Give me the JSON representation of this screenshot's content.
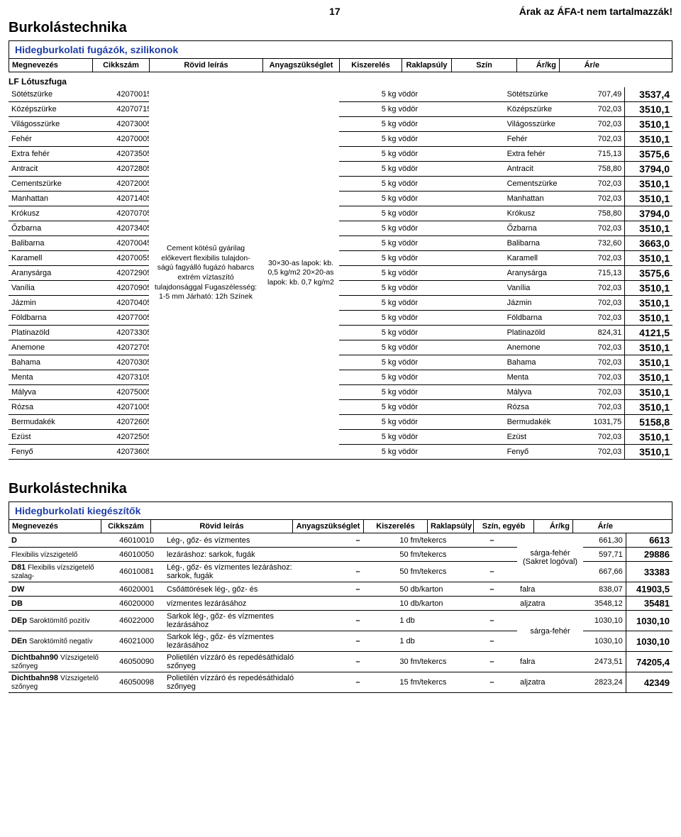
{
  "page_number": "17",
  "vat_note": "Árak az ÁFA-t nem tartalmazzák!",
  "section1_title": "Burkolástechnika",
  "section1_subtitle": "Hidegburkolati fugázók, szilikonok",
  "headers1": {
    "name": "Megnevezés",
    "code": "Cikkszám",
    "desc": "Rövid leírás",
    "need": "Anyagszükséglet",
    "pack": "Kiszerelés",
    "wt": "Raklapsúly",
    "color": "Szín",
    "pk": "Ár/kg",
    "pe": "Ár/e"
  },
  "product1_header": "LF Lótuszfuga",
  "desc_shared": "Cement kötésű gyárilag előkevert flexibilis tulajdon-ságú fagyálló fugázó habarcs extrém víztaszító tulajdonsággal Fugaszélesség: 1-5 mm Járható: 12h Színek",
  "need_shared": "30×30-as lapok: kb. 0,5 kg/m2 20×20-as lapok: kb. 0,7 kg/m2",
  "rows1": [
    {
      "name": "Sötétszürke",
      "code": "42070015",
      "pack": "5 kg vödör",
      "color": "Sötétszürke",
      "pk": "707,49",
      "pe": "3537,4"
    },
    {
      "name": "Középszürke",
      "code": "42070715",
      "pack": "5 kg vödör",
      "color": "Középszürke",
      "pk": "702,03",
      "pe": "3510,1"
    },
    {
      "name": "Világosszürke",
      "code": "42073005",
      "pack": "5 kg vödör",
      "color": "Világosszürke",
      "pk": "702,03",
      "pe": "3510,1"
    },
    {
      "name": "Fehér",
      "code": "42070005",
      "pack": "5 kg vödör",
      "color": "Fehér",
      "pk": "702,03",
      "pe": "3510,1"
    },
    {
      "name": "Extra fehér",
      "code": "42073505",
      "pack": "5 kg vödör",
      "color": "Extra fehér",
      "pk": "715,13",
      "pe": "3575,6"
    },
    {
      "name": "Antracit",
      "code": "42072805",
      "pack": "5 kg vödör",
      "color": "Antracit",
      "pk": "758,80",
      "pe": "3794,0"
    },
    {
      "name": "Cementszürke",
      "code": "42072005",
      "pack": "5 kg vödör",
      "color": "Cementszürke",
      "pk": "702,03",
      "pe": "3510,1"
    },
    {
      "name": "Manhattan",
      "code": "42071405",
      "pack": "5 kg vödör",
      "color": "Manhattan",
      "pk": "702,03",
      "pe": "3510,1"
    },
    {
      "name": "Krókusz",
      "code": "42070705",
      "pack": "5 kg vödör",
      "color": "Krókusz",
      "pk": "758,80",
      "pe": "3794,0"
    },
    {
      "name": "Őzbarna",
      "code": "42073405",
      "pack": "5 kg vödör",
      "color": "Őzbarna",
      "pk": "702,03",
      "pe": "3510,1"
    },
    {
      "name": "Balibarna",
      "code": "42070045",
      "pack": "5 kg vödör",
      "color": "Balibarna",
      "pk": "732,60",
      "pe": "3663,0"
    },
    {
      "name": "Karamell",
      "code": "42070055",
      "pack": "5 kg vödör",
      "color": "Karamell",
      "pk": "702,03",
      "pe": "3510,1"
    },
    {
      "name": "Aranysárga",
      "code": "42072905",
      "pack": "5 kg vödör",
      "color": "Aranysárga",
      "pk": "715,13",
      "pe": "3575,6"
    },
    {
      "name": "Vanília",
      "code": "42070905",
      "pack": "5 kg vödör",
      "color": "Vanília",
      "pk": "702,03",
      "pe": "3510,1"
    },
    {
      "name": "Jázmin",
      "code": "42070405",
      "pack": "5 kg vödör",
      "color": "Jázmin",
      "pk": "702,03",
      "pe": "3510,1"
    },
    {
      "name": "Földbarna",
      "code": "42077005",
      "pack": "5 kg vödör",
      "color": "Földbarna",
      "pk": "702,03",
      "pe": "3510,1"
    },
    {
      "name": "Platinazöld",
      "code": "42073305",
      "pack": "5 kg vödör",
      "color": "Platinazöld",
      "pk": "824,31",
      "pe": "4121,5"
    },
    {
      "name": "Anemone",
      "code": "42072705",
      "pack": "5 kg vödör",
      "color": "Anemone",
      "pk": "702,03",
      "pe": "3510,1"
    },
    {
      "name": "Bahama",
      "code": "42070305",
      "pack": "5 kg vödör",
      "color": "Bahama",
      "pk": "702,03",
      "pe": "3510,1"
    },
    {
      "name": "Menta",
      "code": "42073105",
      "pack": "5 kg vödör",
      "color": "Menta",
      "pk": "702,03",
      "pe": "3510,1"
    },
    {
      "name": "Mályva",
      "code": "42075005",
      "pack": "5 kg vödör",
      "color": "Mályva",
      "pk": "702,03",
      "pe": "3510,1"
    },
    {
      "name": "Rózsa",
      "code": "42071005",
      "pack": "5 kg vödör",
      "color": "Rózsa",
      "pk": "702,03",
      "pe": "3510,1"
    },
    {
      "name": "Bermudakék",
      "code": "42072605",
      "pack": "5 kg vödör",
      "color": "Bermudakék",
      "pk": "1031,75",
      "pe": "5158,8"
    },
    {
      "name": "Ezüst",
      "code": "42072505",
      "pack": "5 kg vödör",
      "color": "Ezüst",
      "pk": "702,03",
      "pe": "3510,1"
    },
    {
      "name": "Fenyő",
      "code": "42073605",
      "pack": "5 kg vödör",
      "color": "Fenyő",
      "pk": "702,03",
      "pe": "3510,1"
    }
  ],
  "section2_title": "Burkolástechnika",
  "section2_subtitle": "Hidegburkolati kiegészítők",
  "headers2": {
    "name": "Megnevezés",
    "code": "Cikkszám",
    "desc": "Rövid leírás",
    "need": "Anyagszükséglet",
    "pack": "Kiszerelés",
    "wt": "Raklapsúly",
    "color": "Szín, egyéb",
    "pk": "Ár/kg",
    "pe": "Ár/e"
  },
  "rows2": [
    {
      "name_b": "D",
      "name_s": "",
      "code": "46010010",
      "desc": "Lég-, gőz- és vízmentes",
      "need": "–",
      "pack": "10 fm/tekercs",
      "wt": "–",
      "color": "",
      "pk": "661,30",
      "pe": "6613",
      "color_span": 3,
      "color_txt": "sárga-fehér (Sakret logóval)"
    },
    {
      "name_b": "",
      "name_s": "Flexibilis vízszigetelő",
      "code": "46010050",
      "desc": "lezáráshoz: sarkok, fugák",
      "need": "",
      "pack": "50 fm/tekercs",
      "wt": "",
      "color": "",
      "pk": "597,71",
      "pe": "29886"
    },
    {
      "name_b": "D81",
      "name_s": " Flexibilis vízszigetelő szalag-",
      "code": "46010081",
      "desc": "Lég-, gőz- és vízmentes lezáráshoz: sarkok, fugák",
      "need": "–",
      "pack": "50 fm/tekercs",
      "wt": "–",
      "color": "",
      "pk": "667,66",
      "pe": "33383"
    },
    {
      "name_b": "DW",
      "name_s": "",
      "code": "46020001",
      "desc": "Csőáttörések lég-, gőz- és",
      "need": "–",
      "pack": "50 db/karton",
      "wt": "–",
      "color": "falra",
      "pk": "838,07",
      "pe": "41903,5"
    },
    {
      "name_b": "DB",
      "name_s": "",
      "code": "46020000",
      "desc": "vízmentes lezárásához",
      "need": "",
      "pack": "10 db/karton",
      "wt": "",
      "color": "aljzatra",
      "pk": "3548,12",
      "pe": "35481"
    },
    {
      "name_b": "DEp",
      "name_s": "Saroktömítő pozitív",
      "code": "46022000",
      "desc": "Sarkok lég-, gőz- és vízmentes lezárásához",
      "need": "–",
      "pack": "1 db",
      "wt": "–",
      "color": "",
      "pk": "1030,10",
      "pe": "1030,10",
      "color_span": 2,
      "color_txt": "sárga-fehér"
    },
    {
      "name_b": "DEn",
      "name_s": "Saroktömítő negatív",
      "code": "46021000",
      "desc": "Sarkok lég-, gőz- és vízmentes lezárásához",
      "need": "–",
      "pack": "1 db",
      "wt": "–",
      "color": "",
      "pk": "1030,10",
      "pe": "1030,10"
    },
    {
      "name_b": "Dichtbahn90",
      "name_s": "Vízszigetelő szőnyeg",
      "code": "46050090",
      "desc": "Polietilén vízzáró és repedésáthidaló szőnyeg",
      "need": "–",
      "pack": "30 fm/tekercs",
      "wt": "–",
      "color": "falra",
      "pk": "2473,51",
      "pe": "74205,4"
    },
    {
      "name_b": "Dichtbahn98",
      "name_s": "Vízszigetelő szőnyeg",
      "code": "46050098",
      "desc": "Polietilén vízzáró és repedésáthidaló szőnyeg",
      "need": "–",
      "pack": "15 fm/tekercs",
      "wt": "–",
      "color": "aljzatra",
      "pk": "2823,24",
      "pe": "42349"
    }
  ],
  "style": {
    "blue": "#1f3ea8",
    "black": "#000000",
    "white": "#ffffff",
    "body_font_size": 12,
    "title_font_size": 20,
    "bold_price_font_size": 14
  }
}
